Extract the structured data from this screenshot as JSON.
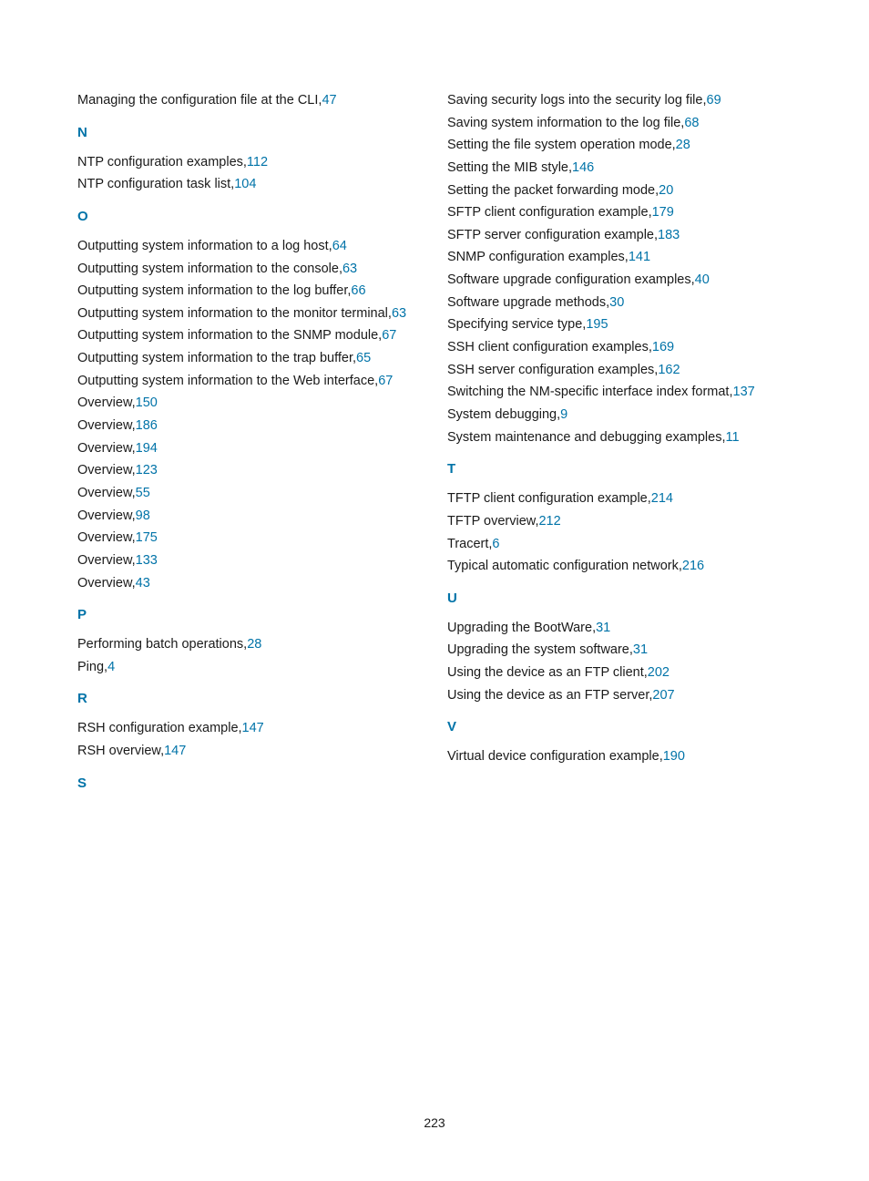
{
  "page_number": "223",
  "colors": {
    "link": "#0073a8",
    "text": "#1a1a1a",
    "background": "#ffffff"
  },
  "typography": {
    "body_fontsize": 14.5,
    "letter_fontsize": 15,
    "line_height": 1.7,
    "font_family": "Arial"
  },
  "left_column": [
    {
      "type": "entry",
      "text": "Managing the configuration file at the CLI",
      "page": "47"
    },
    {
      "type": "letter",
      "label": "N"
    },
    {
      "type": "entry",
      "text": "NTP configuration examples",
      "page": "112"
    },
    {
      "type": "entry",
      "text": "NTP configuration task list",
      "page": "104"
    },
    {
      "type": "letter",
      "label": "O"
    },
    {
      "type": "entry",
      "text": "Outputting system information to a log host",
      "page": "64"
    },
    {
      "type": "entry",
      "text": "Outputting system information to the console",
      "page": "63"
    },
    {
      "type": "entry",
      "text": "Outputting system information to the log buffer",
      "page": "66"
    },
    {
      "type": "entry",
      "text": "Outputting system information to the monitor terminal",
      "page": "63"
    },
    {
      "type": "entry",
      "text": "Outputting system information to the SNMP module",
      "page": "67"
    },
    {
      "type": "entry",
      "text": "Outputting system information to the trap buffer",
      "page": "65"
    },
    {
      "type": "entry",
      "text": "Outputting system information to the Web interface",
      "page": "67"
    },
    {
      "type": "entry",
      "text": "Overview",
      "page": "150"
    },
    {
      "type": "entry",
      "text": "Overview",
      "page": "186"
    },
    {
      "type": "entry",
      "text": "Overview",
      "page": "194"
    },
    {
      "type": "entry",
      "text": "Overview",
      "page": "123"
    },
    {
      "type": "entry",
      "text": "Overview",
      "page": "55"
    },
    {
      "type": "entry",
      "text": "Overview",
      "page": "98"
    },
    {
      "type": "entry",
      "text": "Overview",
      "page": "175"
    },
    {
      "type": "entry",
      "text": "Overview",
      "page": "133"
    },
    {
      "type": "entry",
      "text": "Overview",
      "page": "43"
    },
    {
      "type": "letter",
      "label": "P"
    },
    {
      "type": "entry",
      "text": "Performing batch operations",
      "page": "28"
    },
    {
      "type": "entry",
      "text": "Ping",
      "page": "4"
    },
    {
      "type": "letter",
      "label": "R"
    },
    {
      "type": "entry",
      "text": "RSH configuration example",
      "page": "147"
    },
    {
      "type": "entry",
      "text": "RSH overview",
      "page": "147"
    },
    {
      "type": "letter",
      "label": "S"
    }
  ],
  "right_column": [
    {
      "type": "entry",
      "text": "Saving security logs into the security log file",
      "page": "69"
    },
    {
      "type": "entry",
      "text": "Saving system information to the log file",
      "page": "68"
    },
    {
      "type": "entry",
      "text": "Setting the file system operation mode",
      "page": "28"
    },
    {
      "type": "entry",
      "text": "Setting the MIB style",
      "page": "146"
    },
    {
      "type": "entry",
      "text": "Setting the packet forwarding mode",
      "page": "20"
    },
    {
      "type": "entry",
      "text": "SFTP client configuration example",
      "page": "179"
    },
    {
      "type": "entry",
      "text": "SFTP server configuration example",
      "page": "183"
    },
    {
      "type": "entry",
      "text": "SNMP configuration examples",
      "page": "141"
    },
    {
      "type": "entry",
      "text": "Software upgrade configuration examples",
      "page": "40"
    },
    {
      "type": "entry",
      "text": "Software upgrade methods",
      "page": "30"
    },
    {
      "type": "entry",
      "text": "Specifying service type",
      "page": "195"
    },
    {
      "type": "entry",
      "text": "SSH client configuration examples",
      "page": "169"
    },
    {
      "type": "entry",
      "text": "SSH server configuration examples",
      "page": "162"
    },
    {
      "type": "entry",
      "text": "Switching the NM-specific interface index format",
      "page": "137"
    },
    {
      "type": "entry",
      "text": "System debugging",
      "page": "9"
    },
    {
      "type": "entry",
      "text": "System maintenance and debugging examples",
      "page": "11"
    },
    {
      "type": "letter",
      "label": "T"
    },
    {
      "type": "entry",
      "text": "TFTP client configuration example",
      "page": "214"
    },
    {
      "type": "entry",
      "text": "TFTP overview",
      "page": "212"
    },
    {
      "type": "entry",
      "text": "Tracert",
      "page": "6"
    },
    {
      "type": "entry",
      "text": "Typical automatic configuration network",
      "page": "216"
    },
    {
      "type": "letter",
      "label": "U"
    },
    {
      "type": "entry",
      "text": "Upgrading the BootWare",
      "page": "31"
    },
    {
      "type": "entry",
      "text": "Upgrading the system software",
      "page": "31"
    },
    {
      "type": "entry",
      "text": "Using the device as an FTP client",
      "page": "202"
    },
    {
      "type": "entry",
      "text": "Using the device as an FTP server",
      "page": "207"
    },
    {
      "type": "letter",
      "label": "V"
    },
    {
      "type": "entry",
      "text": "Virtual device configuration example",
      "page": "190"
    }
  ]
}
